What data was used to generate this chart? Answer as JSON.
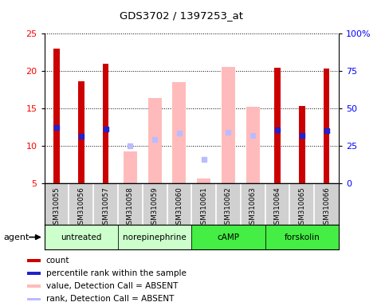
{
  "title": "GDS3702 / 1397253_at",
  "samples": [
    "GSM310055",
    "GSM310056",
    "GSM310057",
    "GSM310058",
    "GSM310059",
    "GSM310060",
    "GSM310061",
    "GSM310062",
    "GSM310063",
    "GSM310064",
    "GSM310065",
    "GSM310066"
  ],
  "count_values": [
    23.0,
    18.6,
    21.0,
    null,
    null,
    null,
    null,
    null,
    null,
    20.5,
    15.4,
    20.4
  ],
  "rank_values": [
    12.5,
    11.3,
    12.3,
    null,
    null,
    null,
    null,
    null,
    null,
    12.2,
    11.4,
    12.1
  ],
  "absent_value_values": [
    null,
    null,
    null,
    9.3,
    16.4,
    18.5,
    5.7,
    20.6,
    15.2,
    null,
    null,
    null
  ],
  "absent_rank_values": [
    null,
    null,
    null,
    10.0,
    10.9,
    11.7,
    8.2,
    11.8,
    11.4,
    null,
    null,
    null
  ],
  "count_color": "#cc0000",
  "rank_color": "#2222cc",
  "absent_value_color": "#ffbbbb",
  "absent_rank_color": "#bbbbff",
  "ylim_left": [
    5,
    25
  ],
  "ylim_right": [
    0,
    100
  ],
  "yticks_left": [
    5,
    10,
    15,
    20,
    25
  ],
  "yticks_right": [
    0,
    25,
    50,
    75,
    100
  ],
  "ytick_labels_right": [
    "0",
    "25",
    "50",
    "75",
    "100%"
  ],
  "bar_width": 0.55,
  "bar_bottom": 5,
  "group_boundaries": [
    [
      0,
      2,
      "untreated",
      "#ccffcc"
    ],
    [
      3,
      5,
      "norepinephrine",
      "#ccffcc"
    ],
    [
      6,
      8,
      "cAMP",
      "#44ee44"
    ],
    [
      9,
      11,
      "forskolin",
      "#44ee44"
    ]
  ],
  "legend_items": [
    {
      "color": "#cc0000",
      "label": "count"
    },
    {
      "color": "#2222cc",
      "label": "percentile rank within the sample"
    },
    {
      "color": "#ffbbbb",
      "label": "value, Detection Call = ABSENT"
    },
    {
      "color": "#bbbbff",
      "label": "rank, Detection Call = ABSENT"
    }
  ],
  "cell_bg_color": "#d0d0d0",
  "plot_bg_color": "#ffffff",
  "fig_bg_color": "#ffffff"
}
